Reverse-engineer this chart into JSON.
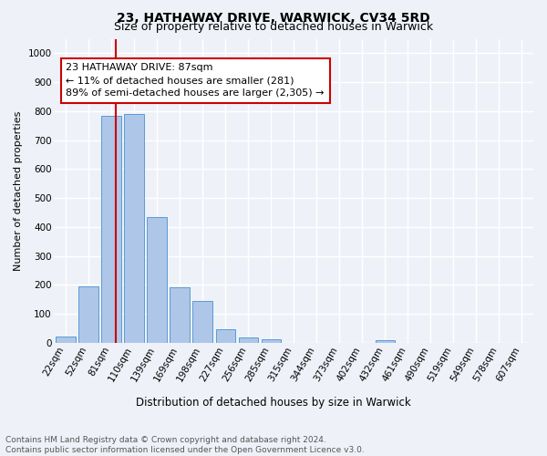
{
  "title1": "23, HATHAWAY DRIVE, WARWICK, CV34 5RD",
  "title2": "Size of property relative to detached houses in Warwick",
  "xlabel": "Distribution of detached houses by size in Warwick",
  "ylabel": "Number of detached properties",
  "bar_labels": [
    "22sqm",
    "52sqm",
    "81sqm",
    "110sqm",
    "139sqm",
    "169sqm",
    "198sqm",
    "227sqm",
    "256sqm",
    "285sqm",
    "315sqm",
    "344sqm",
    "373sqm",
    "402sqm",
    "432sqm",
    "461sqm",
    "490sqm",
    "519sqm",
    "549sqm",
    "578sqm",
    "607sqm"
  ],
  "bar_values": [
    20,
    193,
    785,
    790,
    435,
    190,
    143,
    47,
    18,
    12,
    0,
    0,
    0,
    0,
    10,
    0,
    0,
    0,
    0,
    0,
    0
  ],
  "bar_color": "#aec6e8",
  "bar_edge_color": "#5b9bd5",
  "vline_color": "#cc0000",
  "annotation_text": "23 HATHAWAY DRIVE: 87sqm\n← 11% of detached houses are smaller (281)\n89% of semi-detached houses are larger (2,305) →",
  "annotation_box_color": "#ffffff",
  "annotation_box_edge": "#cc0000",
  "ylim": [
    0,
    1050
  ],
  "yticks": [
    0,
    100,
    200,
    300,
    400,
    500,
    600,
    700,
    800,
    900,
    1000
  ],
  "footer": "Contains HM Land Registry data © Crown copyright and database right 2024.\nContains public sector information licensed under the Open Government Licence v3.0.",
  "bg_color": "#eef2f8",
  "grid_color": "#ffffff",
  "title1_fontsize": 10,
  "title2_fontsize": 9,
  "ylabel_fontsize": 8,
  "xlabel_fontsize": 8.5,
  "tick_fontsize": 7.5,
  "annot_fontsize": 8,
  "footer_fontsize": 6.5
}
